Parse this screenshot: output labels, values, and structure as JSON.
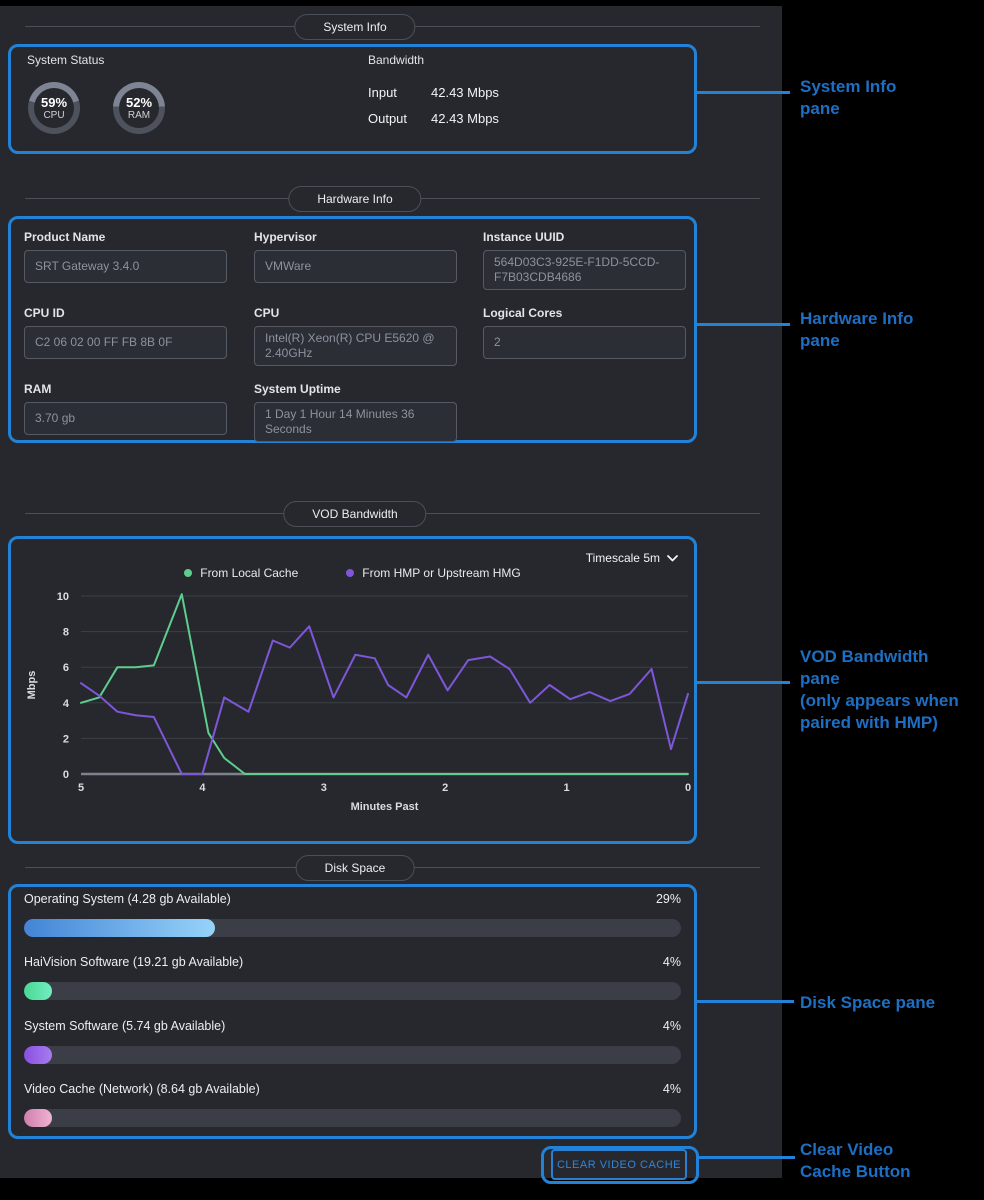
{
  "colors": {
    "app_background": "#26282e",
    "outer_background": "#000000",
    "callout_blue": "#2282d8",
    "annotation_blue": "#1d6fc4",
    "gauge_used": "#4e525c",
    "gauge_free": "#7f8494"
  },
  "system_info": {
    "header": "System Info",
    "system_status_label": "System Status",
    "gauges": [
      {
        "pct": "59%",
        "label": "CPU",
        "value": 59
      },
      {
        "pct": "52%",
        "label": "RAM",
        "value": 52
      }
    ],
    "bandwidth": {
      "title": "Bandwidth",
      "rows": [
        {
          "label": "Input",
          "value": "42.43 Mbps"
        },
        {
          "label": "Output",
          "value": "42.43 Mbps"
        }
      ]
    }
  },
  "hardware_info": {
    "header": "Hardware Info",
    "fields": [
      {
        "label": "Product Name",
        "value": "SRT Gateway 3.4.0"
      },
      {
        "label": "Hypervisor",
        "value": "VMWare"
      },
      {
        "label": "Instance UUID",
        "value": "564D03C3-925E-F1DD-5CCD-F7B03CDB4686"
      },
      {
        "label": "CPU ID",
        "value": "C2 06 02 00 FF FB 8B 0F"
      },
      {
        "label": "CPU",
        "value": "Intel(R) Xeon(R) CPU E5620 @ 2.40GHz"
      },
      {
        "label": "Logical Cores",
        "value": "2"
      },
      {
        "label": "RAM",
        "value": "3.70 gb"
      },
      {
        "label": "System Uptime",
        "value": "1 Day 1 Hour 14 Minutes 36 Seconds"
      }
    ]
  },
  "vod_bandwidth": {
    "header": "VOD Bandwidth",
    "timescale_label": "Timescale 5m"
  },
  "chart_data": {
    "type": "line",
    "title": "VOD Bandwidth",
    "xlabel": "Minutes Past",
    "ylabel": "Mbps",
    "xlim": [
      5,
      0
    ],
    "ylim": [
      0,
      10
    ],
    "xticks": [
      5,
      4,
      3,
      2,
      1,
      0
    ],
    "yticks": [
      0,
      2,
      4,
      6,
      8,
      10
    ],
    "grid": true,
    "legend_position": "top",
    "series": [
      {
        "name": "From Local Cache",
        "color": "#5ecd8e",
        "points": [
          [
            5.0,
            4.0
          ],
          [
            4.85,
            4.3
          ],
          [
            4.7,
            6.0
          ],
          [
            4.55,
            6.0
          ],
          [
            4.4,
            6.1
          ],
          [
            4.17,
            10.1
          ],
          [
            3.95,
            2.3
          ],
          [
            3.82,
            0.9
          ],
          [
            3.65,
            0
          ],
          [
            3.4,
            0
          ],
          [
            3.1,
            0
          ],
          [
            2.8,
            0
          ],
          [
            2.5,
            0
          ],
          [
            2.2,
            0
          ],
          [
            1.9,
            0
          ],
          [
            1.6,
            0
          ],
          [
            1.3,
            0
          ],
          [
            1.0,
            0
          ],
          [
            0.7,
            0
          ],
          [
            0.4,
            0
          ],
          [
            0.0,
            0
          ]
        ]
      },
      {
        "name": "From HMP or Upstream HMG",
        "color": "#7e57d8",
        "points": [
          [
            5.0,
            5.1
          ],
          [
            4.85,
            4.4
          ],
          [
            4.7,
            3.5
          ],
          [
            4.55,
            3.3
          ],
          [
            4.4,
            3.2
          ],
          [
            4.17,
            0
          ],
          [
            4.0,
            0
          ],
          [
            3.82,
            4.3
          ],
          [
            3.62,
            3.5
          ],
          [
            3.42,
            7.5
          ],
          [
            3.28,
            7.1
          ],
          [
            3.12,
            8.3
          ],
          [
            2.92,
            4.3
          ],
          [
            2.74,
            6.7
          ],
          [
            2.58,
            6.5
          ],
          [
            2.47,
            5.0
          ],
          [
            2.32,
            4.3
          ],
          [
            2.14,
            6.7
          ],
          [
            1.98,
            4.7
          ],
          [
            1.81,
            6.4
          ],
          [
            1.63,
            6.6
          ],
          [
            1.47,
            5.9
          ],
          [
            1.3,
            4.0
          ],
          [
            1.14,
            5.0
          ],
          [
            0.97,
            4.2
          ],
          [
            0.81,
            4.6
          ],
          [
            0.64,
            4.1
          ],
          [
            0.48,
            4.5
          ],
          [
            0.3,
            5.9
          ],
          [
            0.14,
            1.4
          ],
          [
            0.0,
            4.5
          ]
        ]
      }
    ]
  },
  "disk_space": {
    "header": "Disk Space",
    "rows": [
      {
        "label": "Operating System (4.28 gb Available)",
        "pct": "29%",
        "value": 29,
        "color_start": "#4384d6",
        "color_end": "#96d3f9"
      },
      {
        "label": "HaiVision Software (19.21 gb Available)",
        "pct": "4%",
        "value": 4,
        "color_start": "#49d894",
        "color_end": "#72eec0"
      },
      {
        "label": "System Software (5.74 gb Available)",
        "pct": "4%",
        "value": 4,
        "color_start": "#8a4fe0",
        "color_end": "#a77cf0"
      },
      {
        "label": "Video Cache (Network) (8.64 gb Available)",
        "pct": "4%",
        "value": 4,
        "color_start": "#cf7fae",
        "color_end": "#f0b3d2"
      }
    ]
  },
  "clear_cache_button": {
    "label": "CLEAR VIDEO CACHE"
  },
  "annotations": {
    "system": "System Info\npane",
    "hardware": "Hardware Info\npane",
    "vod": "VOD Bandwidth\npane\n(only appears when\npaired with HMP)",
    "disk": "Disk Space pane",
    "clear_button": "Clear Video\nCache Button"
  }
}
